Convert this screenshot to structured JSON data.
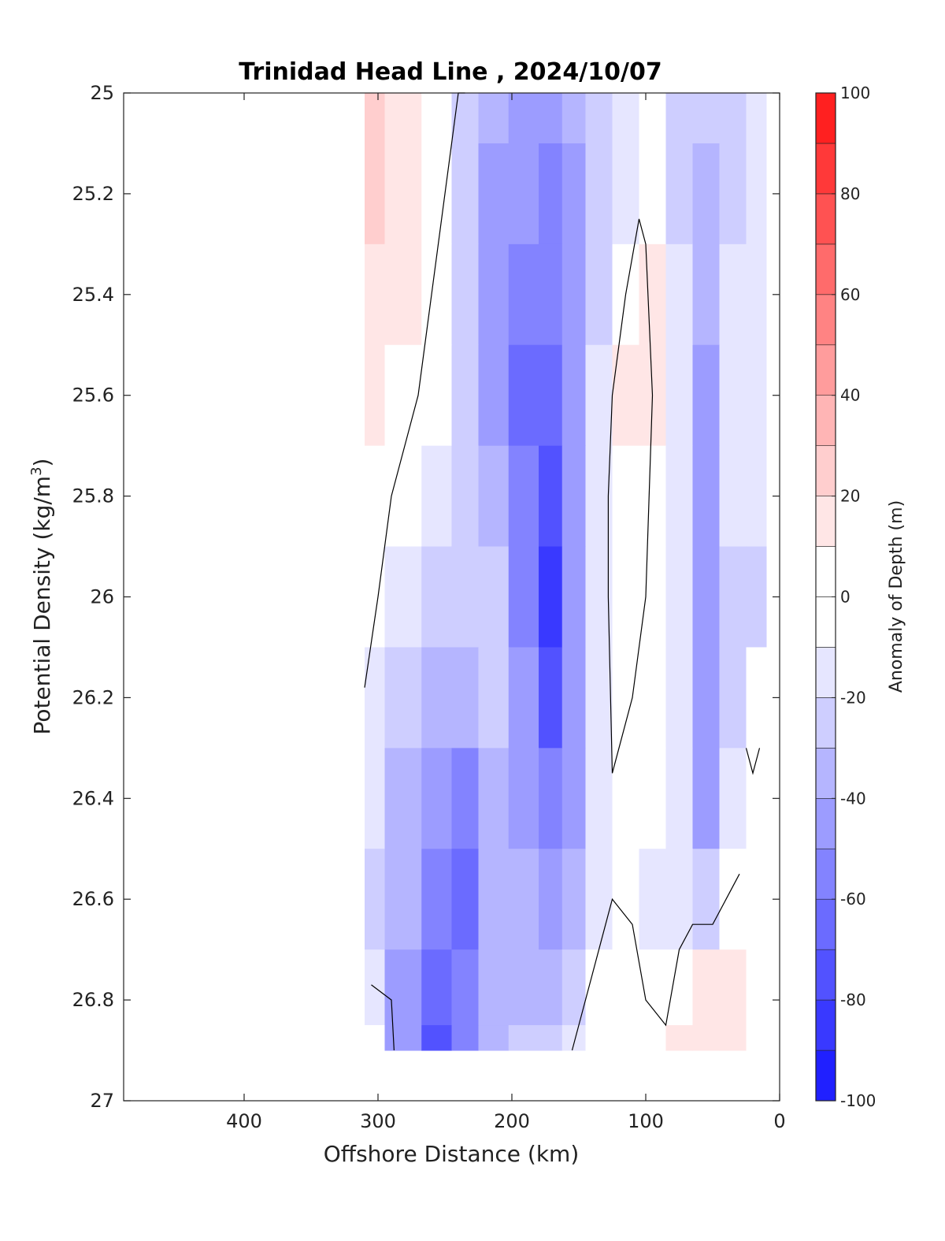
{
  "chart_data": {
    "type": "contour",
    "title": "Trinidad Head Line , 2024/10/07",
    "xlabel": "Offshore Distance (km)",
    "ylabel_main": "Potential Density (kg/m",
    "ylabel_sup": "3",
    "ylabel_close": ")",
    "colorbar_label": "Anomaly of Depth (m)",
    "xlim": [
      490,
      0
    ],
    "ylim": [
      25,
      27
    ],
    "x_ticks": [
      400,
      300,
      200,
      100,
      0
    ],
    "x_tick_labels": [
      "400",
      "300",
      "200",
      "100",
      "0"
    ],
    "y_ticks": [
      25,
      25.2,
      25.4,
      25.6,
      25.8,
      26,
      26.2,
      26.4,
      26.6,
      26.8,
      27
    ],
    "y_tick_labels": [
      "25",
      "25.2",
      "25.4",
      "25.6",
      "25.8",
      "26",
      "26.2",
      "26.4",
      "26.6",
      "26.8",
      "27"
    ],
    "colorbar_range": [
      -100,
      100
    ],
    "colorbar_ticks": [
      100,
      80,
      60,
      40,
      20,
      0,
      -20,
      -40,
      -60,
      -80,
      -100
    ],
    "colorbar_tick_labels": [
      "100",
      "80",
      "60",
      "40",
      "20",
      "0",
      "-20",
      "-40",
      "-60",
      "-80",
      "-100"
    ],
    "colorbar_step": 10,
    "colormap": {
      "negative": "#0000ff",
      "zero": "#ffffff",
      "positive": "#ff0000"
    },
    "data_extent": {
      "x": [
        310,
        10
      ],
      "y": [
        25,
        26.9
      ]
    },
    "anomaly_grid": {
      "x": [
        310,
        280,
        255,
        235,
        215,
        190,
        170,
        155,
        135,
        115,
        95,
        75,
        55,
        35,
        15
      ],
      "y": [
        25.0,
        25.2,
        25.4,
        25.6,
        25.8,
        26.0,
        26.2,
        26.4,
        26.6,
        26.8,
        26.9
      ],
      "values": [
        [
          25,
          15,
          -5,
          -25,
          -35,
          -40,
          -40,
          -35,
          -20,
          -15,
          -5,
          -25,
          -25,
          -25,
          -10
        ],
        [
          20,
          12,
          -5,
          -25,
          -40,
          -45,
          -50,
          -40,
          -25,
          -10,
          5,
          -20,
          -30,
          -20,
          -10
        ],
        [
          15,
          10,
          -5,
          -20,
          -40,
          -50,
          -55,
          -40,
          -20,
          5,
          10,
          -10,
          -30,
          -15,
          -10
        ],
        [
          10,
          5,
          -5,
          -20,
          -40,
          -60,
          -65,
          -45,
          -15,
          10,
          15,
          -10,
          -40,
          -15,
          -10
        ],
        [
          5,
          -5,
          -10,
          -20,
          -35,
          -55,
          -75,
          -45,
          -10,
          5,
          5,
          -10,
          -40,
          -15,
          -15
        ],
        [
          -5,
          -10,
          -20,
          -25,
          -20,
          -50,
          -85,
          -45,
          -10,
          0,
          5,
          -15,
          -40,
          -20,
          -20
        ],
        [
          -15,
          -20,
          -30,
          -35,
          -20,
          -40,
          -70,
          -45,
          -10,
          0,
          0,
          -15,
          -40,
          -20,
          -5
        ],
        [
          -15,
          -30,
          -45,
          -55,
          -30,
          -40,
          -55,
          -40,
          -10,
          0,
          -5,
          -15,
          -40,
          -15,
          0
        ],
        [
          -20,
          -35,
          -50,
          -60,
          -30,
          -35,
          -45,
          -35,
          -10,
          -5,
          -15,
          -15,
          -20,
          0,
          5
        ],
        [
          -10,
          -40,
          -65,
          -50,
          -30,
          -35,
          -30,
          -20,
          -5,
          0,
          5,
          5,
          10,
          15,
          5
        ],
        [
          5,
          -45,
          -75,
          -50,
          -30,
          -25,
          -20,
          -10,
          0,
          0,
          5,
          10,
          15,
          15,
          5
        ]
      ]
    },
    "zero_contours": [
      {
        "x": [
          310,
          300,
          290,
          270,
          260,
          250,
          240,
          235
        ],
        "y": [
          26.18,
          26.0,
          25.8,
          25.6,
          25.4,
          25.2,
          25.0,
          25.0
        ]
      },
      {
        "x": [
          125,
          110,
          100,
          95,
          100,
          105,
          115,
          120,
          125,
          128,
          128,
          125
        ],
        "y": [
          26.35,
          26.2,
          26.0,
          25.6,
          25.3,
          25.25,
          25.4,
          25.5,
          25.6,
          25.8,
          26.0,
          26.35
        ]
      },
      {
        "x": [
          155,
          140,
          125,
          110,
          100,
          85,
          75,
          65,
          50,
          40,
          30
        ],
        "y": [
          26.9,
          26.75,
          26.6,
          26.65,
          26.8,
          26.85,
          26.7,
          26.65,
          26.65,
          26.6,
          26.55
        ]
      },
      {
        "x": [
          305,
          290,
          288
        ],
        "y": [
          26.77,
          26.8,
          26.9
        ]
      },
      {
        "x": [
          25,
          20,
          15
        ],
        "y": [
          26.3,
          26.35,
          26.3
        ]
      }
    ]
  }
}
